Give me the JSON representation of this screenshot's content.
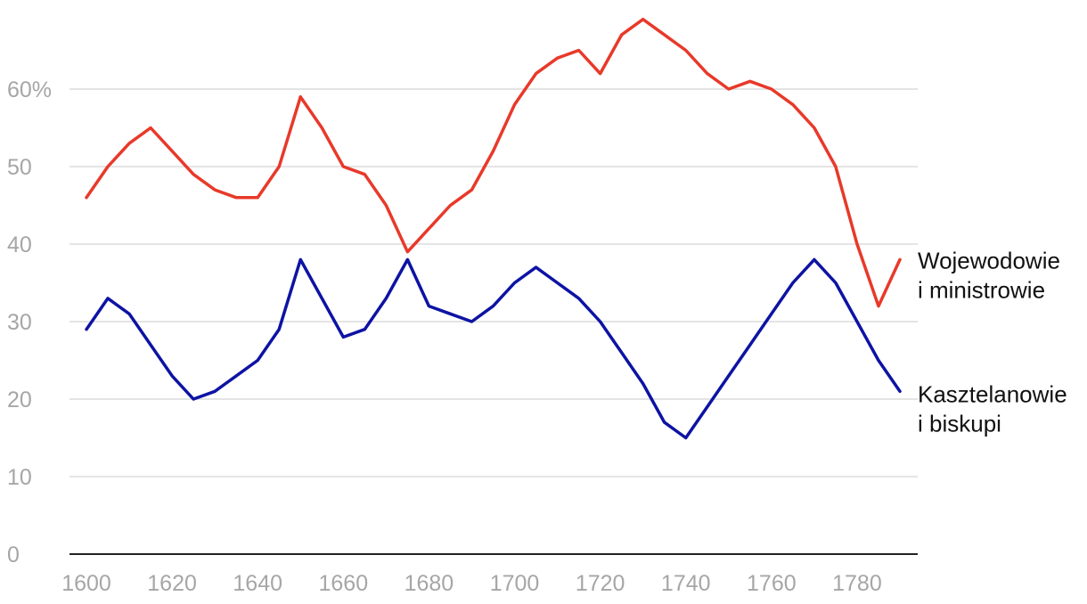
{
  "chart_data": {
    "type": "line",
    "title": "",
    "xlabel": "",
    "ylabel": "",
    "x": [
      1600,
      1605,
      1610,
      1615,
      1620,
      1625,
      1630,
      1635,
      1640,
      1645,
      1650,
      1655,
      1660,
      1665,
      1670,
      1675,
      1680,
      1685,
      1690,
      1695,
      1700,
      1705,
      1710,
      1715,
      1720,
      1725,
      1730,
      1735,
      1740,
      1745,
      1750,
      1755,
      1760,
      1765,
      1770,
      1775,
      1780,
      1785,
      1790
    ],
    "xlim": [
      1600,
      1790
    ],
    "x_ticks": [
      "1600",
      "1620",
      "1640",
      "1660",
      "1680",
      "1700",
      "1720",
      "1740",
      "1760",
      "1780"
    ],
    "ylim": [
      0,
      70
    ],
    "y_ticks": [
      "0",
      "10",
      "20",
      "30",
      "40",
      "50",
      "60%"
    ],
    "grid": true,
    "legend": "direct labels at right end of lines",
    "series": [
      {
        "name_lines": [
          "Wojewodowie",
          "i ministrowie"
        ],
        "color": "#e8392a",
        "values": [
          46,
          50,
          53,
          55,
          52,
          49,
          47,
          46,
          46,
          50,
          59,
          55,
          50,
          49,
          45,
          39,
          42,
          45,
          47,
          52,
          58,
          62,
          64,
          65,
          62,
          67,
          69,
          67,
          65,
          62,
          60,
          61,
          60,
          58,
          55,
          50,
          40,
          32,
          38
        ]
      },
      {
        "name_lines": [
          "Kasztelanowie",
          "i biskupi"
        ],
        "color": "#0d13a3",
        "values": [
          29,
          33,
          31,
          27,
          23,
          20,
          21,
          23,
          25,
          29,
          38,
          33,
          28,
          29,
          33,
          38,
          32,
          31,
          30,
          32,
          35,
          37,
          35,
          33,
          30,
          26,
          22,
          17,
          15,
          19,
          23,
          27,
          31,
          35,
          38,
          35,
          30,
          25,
          21
        ]
      }
    ]
  }
}
